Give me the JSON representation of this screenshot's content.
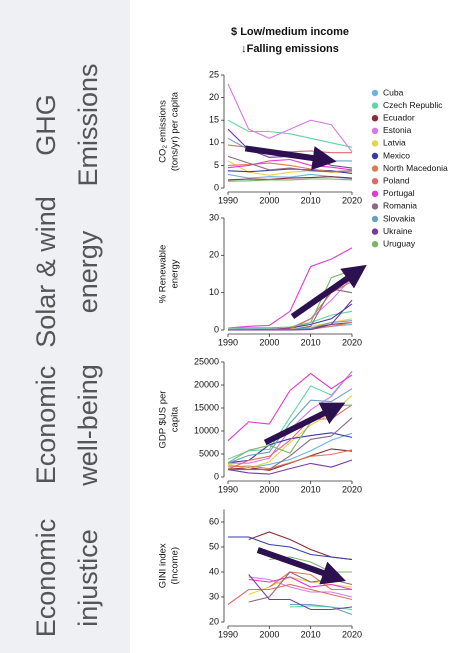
{
  "header": {
    "title": "$ Low/medium income",
    "subtitle": "↓Falling emissions"
  },
  "sidebar": [
    [
      "GHG",
      "Emissions"
    ],
    [
      "Solar & wind",
      "energy"
    ],
    [
      "Economic",
      "well-being"
    ],
    [
      "Economic",
      "injustice"
    ]
  ],
  "chart_data": [
    {
      "type": "line",
      "ylabel": [
        "CO₂ emissions",
        "(tons/yr) per capita"
      ],
      "x": [
        1990,
        1995,
        2000,
        2005,
        2010,
        2015,
        2020
      ],
      "xlim": [
        1990,
        2020
      ],
      "xticks": [
        1990,
        2000,
        2010,
        2020
      ],
      "ylim": [
        0,
        25
      ],
      "yticks": [
        0,
        5,
        10,
        15,
        20,
        25
      ],
      "series": [
        {
          "name": "Cuba",
          "color": "#6cb4e4",
          "values": [
            3,
            2.2,
            2.5,
            2.4,
            3,
            2.5,
            2
          ]
        },
        {
          "name": "Czech Republic",
          "color": "#5ed6a0",
          "values": [
            15,
            12.5,
            12.5,
            12,
            11,
            10,
            9
          ]
        },
        {
          "name": "Ecuador",
          "color": "#8a2d36",
          "values": [
            1.8,
            2,
            1.9,
            2.2,
            2.3,
            2.5,
            2.2
          ]
        },
        {
          "name": "Estonia",
          "color": "#d878e6",
          "values": [
            23,
            13,
            11,
            13,
            15,
            14,
            8
          ]
        },
        {
          "name": "Latvia",
          "color": "#e8d24a",
          "values": [
            6,
            3.5,
            2.8,
            3.5,
            3.8,
            3.5,
            3.5
          ]
        },
        {
          "name": "Mexico",
          "color": "#3a3aa8",
          "values": [
            3.8,
            3.6,
            3.9,
            4.2,
            4,
            3.8,
            3.2
          ]
        },
        {
          "name": "North Macedonia",
          "color": "#e07a55",
          "values": [
            5,
            5.2,
            5.5,
            5,
            4.2,
            3.6,
            3.8
          ]
        },
        {
          "name": "Poland",
          "color": "#e06a6a",
          "values": [
            9.5,
            9,
            8,
            8,
            8.2,
            7.8,
            7.8
          ]
        },
        {
          "name": "Portugal",
          "color": "#e03ad0",
          "values": [
            4.5,
            5,
            6,
            6.3,
            5,
            4.6,
            4
          ]
        },
        {
          "name": "Romania",
          "color": "#8a6a80",
          "values": [
            7,
            5.5,
            4,
            4.4,
            3.8,
            3.6,
            3.8
          ]
        },
        {
          "name": "Slovakia",
          "color": "#6aa0c0",
          "values": [
            11,
            8.5,
            7.5,
            7.8,
            6.8,
            6,
            6
          ]
        },
        {
          "name": "Ukraine",
          "color": "#7a3aa0",
          "values": [
            13,
            8.5,
            6.8,
            7,
            6.8,
            5,
            4.4
          ]
        },
        {
          "name": "Uruguay",
          "color": "#7ab46a",
          "values": [
            1.5,
            1.6,
            1.8,
            1.8,
            2,
            2,
            1.8
          ]
        }
      ]
    },
    {
      "type": "line",
      "ylabel": [
        "% Renewable",
        "energy"
      ],
      "x": [
        1990,
        1995,
        2000,
        2005,
        2010,
        2015,
        2020
      ],
      "xlim": [
        1990,
        2020
      ],
      "xticks": [
        1990,
        2000,
        2010,
        2020
      ],
      "ylim": [
        0,
        30
      ],
      "yticks": [
        0,
        10,
        20,
        30
      ],
      "series": [
        {
          "values": [
            0.2,
            0.3,
            0.3,
            0.3,
            0.4,
            1,
            1.5
          ]
        },
        {
          "values": [
            0,
            0,
            0.1,
            0.3,
            2,
            4,
            5
          ]
        },
        {
          "values": [
            0,
            0,
            0,
            0.1,
            0.5,
            1.5,
            2
          ]
        },
        {
          "values": [
            0,
            0,
            0.1,
            0.5,
            3,
            8,
            14
          ]
        },
        {
          "values": [
            0,
            0,
            0,
            0.2,
            1,
            2,
            3
          ]
        },
        {
          "values": [
            0,
            0,
            0.1,
            0.5,
            1.5,
            3,
            7
          ]
        },
        {
          "values": [
            0,
            0,
            0,
            0,
            0.2,
            1,
            2
          ]
        },
        {
          "values": [
            0,
            0,
            0.1,
            0.3,
            3,
            10,
            13
          ]
        },
        {
          "values": [
            0.5,
            1,
            1.2,
            5,
            17,
            19,
            22
          ]
        },
        {
          "values": [
            0,
            0,
            0,
            0,
            1,
            11,
            10
          ]
        },
        {
          "values": [
            0,
            0,
            0,
            0.1,
            0.5,
            2,
            2.5
          ]
        },
        {
          "values": [
            0,
            0,
            0,
            0,
            0.1,
            1.5,
            8
          ]
        },
        {
          "values": [
            0.5,
            0.6,
            0.6,
            0.8,
            2,
            14,
            16
          ]
        }
      ]
    },
    {
      "type": "line",
      "ylabel": [
        "GDP $US per",
        "capita"
      ],
      "x": [
        1990,
        1995,
        2000,
        2005,
        2010,
        2015,
        2020
      ],
      "xlim": [
        1990,
        2020
      ],
      "xticks": [
        1990,
        2000,
        2010,
        2020
      ],
      "ylim": [
        0,
        25000
      ],
      "yticks": [
        0,
        5000,
        10000,
        15000,
        20000,
        25000
      ],
      "series": [
        {
          "values": [
            2600,
            2000,
            2750,
            3800,
            5700,
            8000,
            9500
          ]
        },
        {
          "values": [
            3900,
            5700,
            6000,
            13000,
            19800,
            17800,
            22900
          ]
        },
        {
          "values": [
            1700,
            2000,
            1450,
            3000,
            4600,
            6100,
            5600
          ]
        },
        {
          "values": [
            3000,
            3000,
            4100,
            10300,
            14600,
            17500,
            23000
          ]
        },
        {
          "values": [
            2800,
            1900,
            3300,
            7500,
            11300,
            13800,
            17700
          ]
        },
        {
          "values": [
            3100,
            3600,
            7000,
            8300,
            9000,
            9600,
            8600
          ]
        },
        {
          "values": [
            2200,
            2400,
            1800,
            3100,
            4500,
            4900,
            5900
          ]
        },
        {
          "values": [
            1700,
            3600,
            4500,
            8000,
            12600,
            12600,
            15700
          ]
        },
        {
          "values": [
            7900,
            12000,
            11500,
            18800,
            22500,
            19200,
            22200
          ]
        },
        {
          "values": [
            1650,
            1600,
            1650,
            4600,
            8200,
            8900,
            12900
          ]
        },
        {
          "values": [
            3000,
            4700,
            5400,
            11700,
            16700,
            16400,
            19200
          ]
        },
        {
          "values": [
            1600,
            900,
            640,
            1830,
            2960,
            2120,
            3700
          ]
        },
        {
          "values": [
            3100,
            5800,
            6900,
            5200,
            11900,
            15600,
            15600
          ]
        }
      ]
    },
    {
      "type": "line",
      "ylabel": [
        "GINI index",
        "(Income)"
      ],
      "x": [
        1990,
        1995,
        2000,
        2005,
        2010,
        2015,
        2020
      ],
      "xlim": [
        1990,
        2020
      ],
      "xticks": [
        1990,
        2000,
        2010,
        2020
      ],
      "ylim": [
        20,
        65
      ],
      "yticks": [
        20,
        30,
        40,
        50,
        60
      ],
      "series": [
        {
          "values": [
            null,
            null,
            null,
            null,
            null,
            null,
            null
          ]
        },
        {
          "values": [
            null,
            26,
            null,
            26,
            26.5,
            26,
            25
          ]
        },
        {
          "values": [
            null,
            53,
            56,
            53,
            49,
            46,
            45
          ]
        },
        {
          "values": [
            null,
            38,
            37,
            34,
            32,
            32,
            30
          ]
        },
        {
          "values": [
            null,
            31,
            34,
            38,
            36,
            35,
            34
          ]
        },
        {
          "values": [
            54,
            54,
            51,
            50,
            47,
            46,
            45
          ]
        },
        {
          "values": [
            null,
            null,
            34,
            40,
            39,
            33,
            33
          ]
        },
        {
          "values": [
            27,
            33,
            33,
            35,
            33,
            31,
            29
          ]
        },
        {
          "values": [
            null,
            37,
            36,
            38,
            34,
            35,
            33
          ]
        },
        {
          "values": [
            null,
            28,
            30,
            40,
            36,
            37,
            35
          ]
        },
        {
          "values": [
            null,
            26,
            null,
            27,
            27,
            26,
            23
          ]
        },
        {
          "values": [
            null,
            39,
            29,
            29,
            25,
            25,
            26
          ]
        },
        {
          "values": [
            null,
            null,
            45,
            46,
            44,
            40,
            40
          ]
        }
      ]
    }
  ]
}
